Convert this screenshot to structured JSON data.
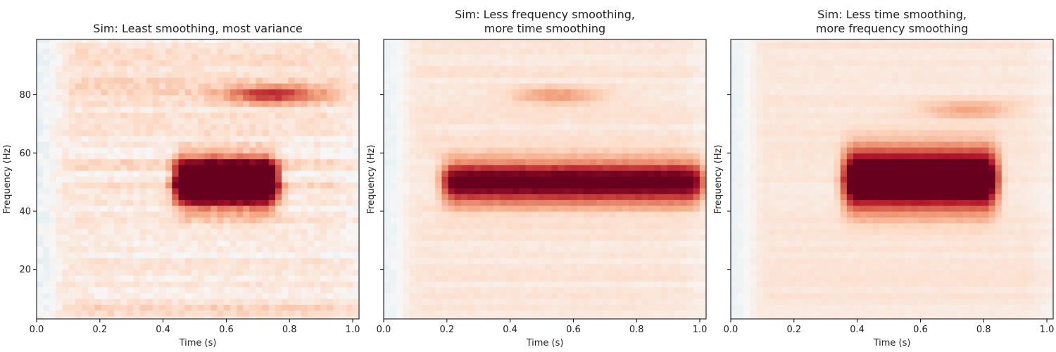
{
  "chart_data": [
    {
      "type": "heatmap",
      "title": "Sim: Least smoothing, most variance",
      "title_lines": [
        "Sim: Least smoothing, most variance"
      ],
      "xlabel": "Time (s)",
      "ylabel": "Frequency (Hz)",
      "xlim": [
        0.0,
        1.02
      ],
      "ylim": [
        3,
        99
      ],
      "xticks": [
        "0.0",
        "0.2",
        "0.4",
        "0.6",
        "0.8",
        "1.0"
      ],
      "yticks": [
        "20",
        "40",
        "60",
        "80"
      ],
      "colormap": "RdBu_r",
      "y_ticklabels_visible": true,
      "blob": {
        "t0": 0.45,
        "t1": 0.75,
        "f_center": 50,
        "f_halfwidth": 8,
        "peak": 1.6
      },
      "bands": [
        {
          "freq": 80,
          "t_center": 0.75,
          "amplitude": 0.6
        }
      ],
      "noise": 0.35
    },
    {
      "type": "heatmap",
      "title": "Sim: Less frequency smoothing, more time smoothing",
      "title_lines": [
        "Sim: Less frequency smoothing,",
        "more time smoothing"
      ],
      "xlabel": "Time (s)",
      "ylabel": "Frequency (Hz)",
      "xlim": [
        0.0,
        1.02
      ],
      "ylim": [
        3,
        99
      ],
      "xticks": [
        "0.0",
        "0.2",
        "0.4",
        "0.6",
        "0.8",
        "1.0"
      ],
      "yticks": [
        "20",
        "40",
        "60",
        "80"
      ],
      "colormap": "RdBu_r",
      "y_ticklabels_visible": false,
      "blob": {
        "t0": 0.2,
        "t1": 1.0,
        "f_center": 50,
        "f_halfwidth": 7,
        "peak": 1.0
      },
      "bands": [
        {
          "freq": 80,
          "t_center": 0.55,
          "amplitude": 0.35
        }
      ],
      "noise": 0.15
    },
    {
      "type": "heatmap",
      "title": "Sim: Less time smoothing, more frequency smoothing",
      "title_lines": [
        "Sim: Less time smoothing,",
        "more frequency smoothing"
      ],
      "xlabel": "Time (s)",
      "ylabel": "Frequency (Hz)",
      "xlim": [
        0.0,
        1.02
      ],
      "ylim": [
        3,
        99
      ],
      "xticks": [
        "0.0",
        "0.2",
        "0.4",
        "0.6",
        "0.8",
        "1.0"
      ],
      "yticks": [
        "20",
        "40",
        "60",
        "80"
      ],
      "colormap": "RdBu_r",
      "y_ticklabels_visible": false,
      "blob": {
        "t0": 0.37,
        "t1": 0.83,
        "f_center": 51,
        "f_halfwidth": 10,
        "peak": 1.3
      },
      "bands": [
        {
          "freq": 75,
          "t_center": 0.75,
          "amplitude": 0.3
        }
      ],
      "noise": 0.1
    }
  ]
}
